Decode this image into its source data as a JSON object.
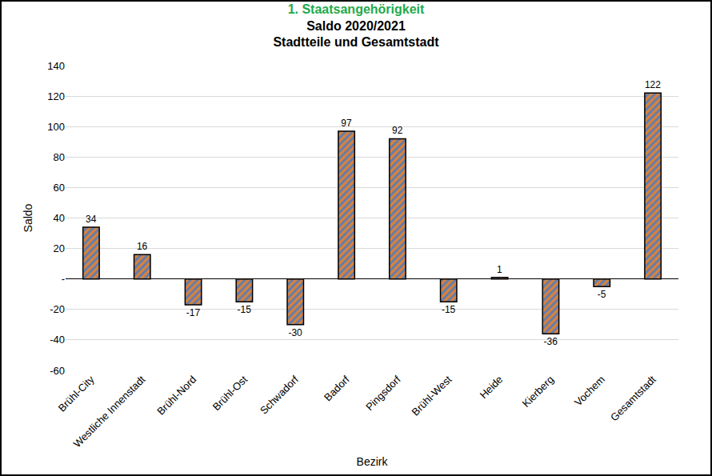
{
  "chart_data": {
    "type": "bar",
    "title": "1. Staatsangehörigkeit",
    "subtitle": [
      "Saldo 2020/2021",
      "Stadtteile und Gesamtstadt"
    ],
    "x_label": "Bezirk",
    "y_label": "Saldo",
    "categories": [
      "Brühl-City",
      "Westliche Innenstadt",
      "Brühl-Nord",
      "Brühl-Ost",
      "Schwadorf",
      "Badorf",
      "Pingsdorf",
      "Brühl-West",
      "Heide",
      "Kierberg",
      "Vochem",
      "Gesamtstadt"
    ],
    "values": [
      34,
      16,
      -17,
      -15,
      -30,
      97,
      92,
      -15,
      1,
      -36,
      -5,
      122
    ],
    "color": "#d9823b",
    "ylim": [
      -60,
      140
    ],
    "yticks": [
      -60,
      -40,
      -20,
      {
        "value": 0,
        "label": "-"
      },
      20,
      40,
      60,
      80,
      100,
      120,
      140
    ],
    "grid": true,
    "data_labels": true
  }
}
